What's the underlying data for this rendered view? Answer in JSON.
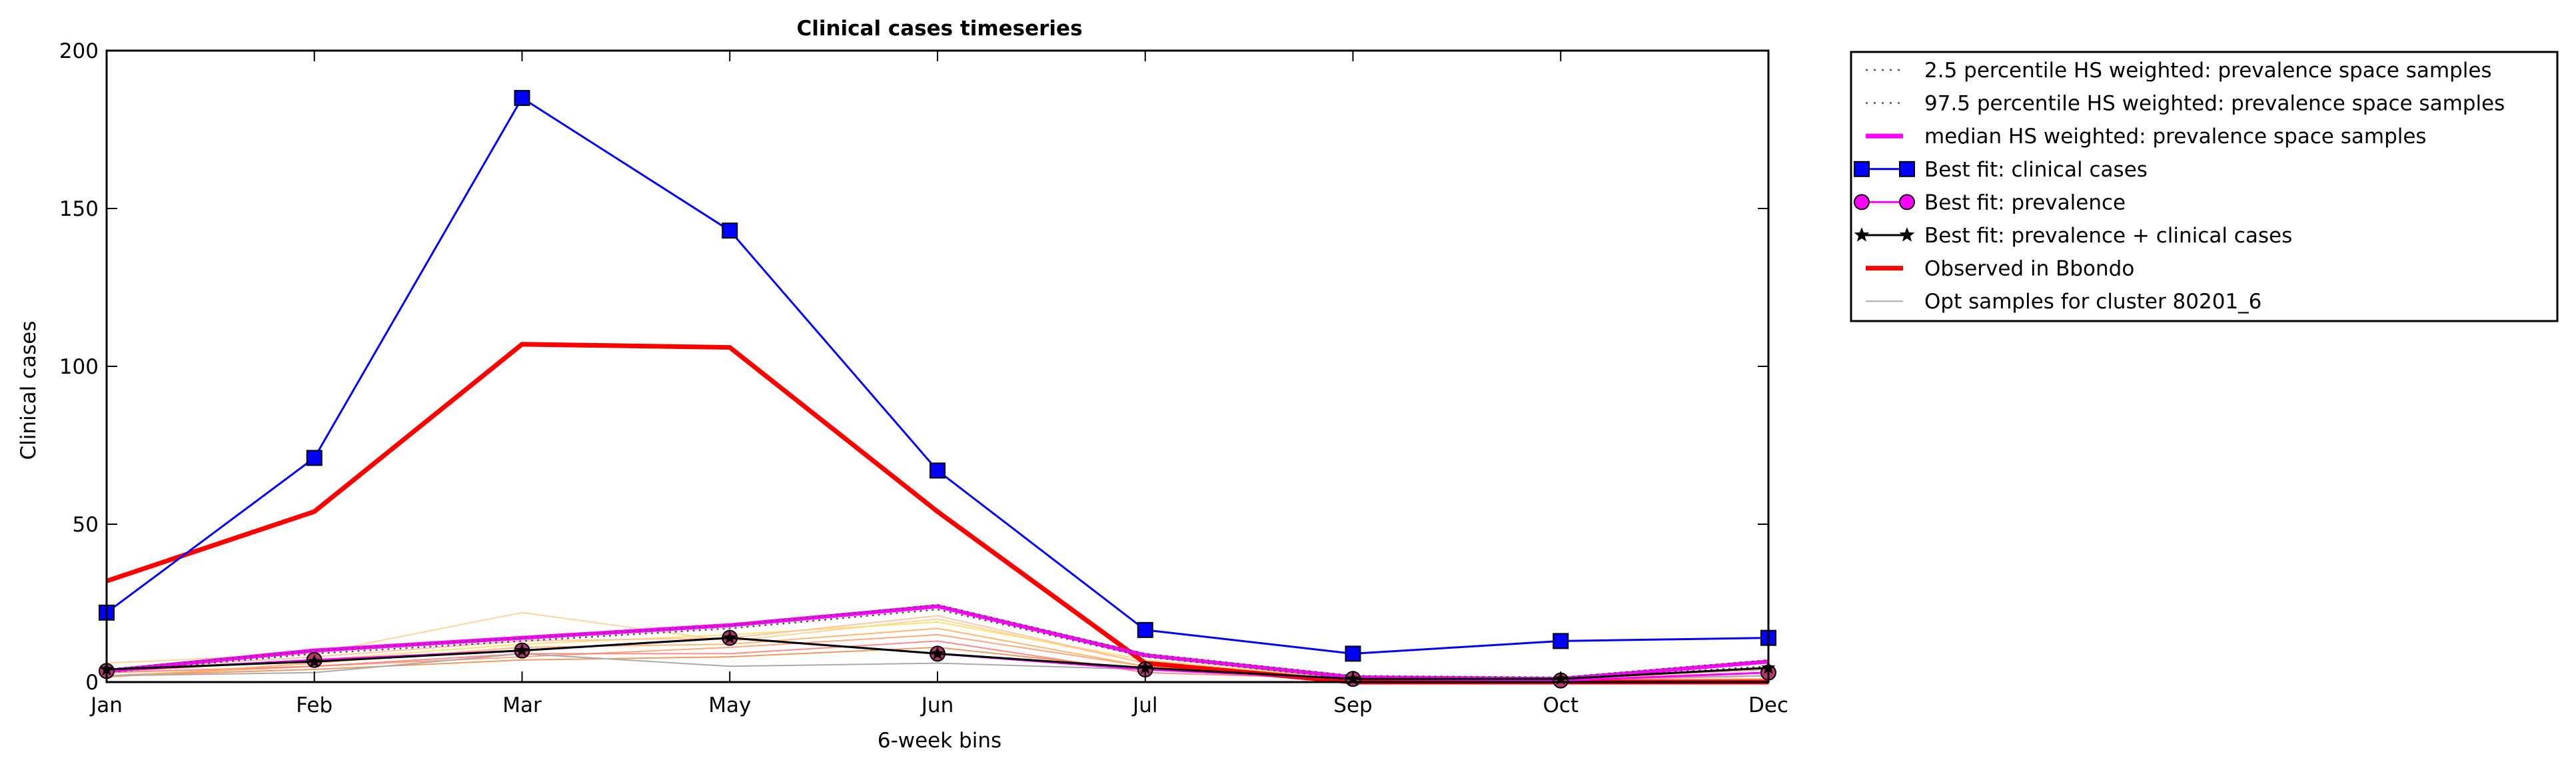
{
  "chart_data": {
    "type": "line",
    "title": "Clinical cases timeseries",
    "xlabel": "6-week bins",
    "ylabel": "Clinical cases",
    "categories": [
      "Jan",
      "Feb",
      "Mar",
      "May",
      "Jun",
      "Jul",
      "Sep",
      "Oct",
      "Dec"
    ],
    "ylim": [
      0,
      200
    ],
    "yticks": [
      0,
      50,
      100,
      150,
      200
    ],
    "grid": false,
    "legend_position": "outside-top-right",
    "series": [
      {
        "name": "2.5 percentile HS weighted: prevalence space samples",
        "style": "dotted",
        "color": "#555555",
        "values": [
          3,
          9,
          13,
          17,
          23,
          8,
          1,
          1,
          5
        ]
      },
      {
        "name": "97.5 percentile HS weighted: prevalence space samples",
        "style": "dotted",
        "color": "#555555",
        "values": [
          4,
          10,
          14,
          18,
          24.5,
          9,
          2,
          1.5,
          7
        ]
      },
      {
        "name": "median HS weighted: prevalence space samples",
        "style": "solid-thick",
        "color": "#ff00ff",
        "values": [
          3.5,
          10,
          14,
          18,
          24,
          8.5,
          1.5,
          1,
          6.5
        ]
      },
      {
        "name": "Best fit: clinical cases",
        "style": "square-markers",
        "color": "#0000ff",
        "values": [
          22,
          71,
          185,
          143,
          67,
          16.5,
          9,
          13,
          14
        ]
      },
      {
        "name": "Best fit: prevalence",
        "style": "circle-markers",
        "color": "#ff00ff",
        "values": [
          3.5,
          7,
          10,
          14,
          9,
          4,
          1,
          0.5,
          3
        ]
      },
      {
        "name": "Best fit: prevalence + clinical cases",
        "style": "star-markers",
        "color": "#000000",
        "values": [
          4,
          6.5,
          10,
          14,
          9,
          4.5,
          1,
          1,
          4.5
        ]
      },
      {
        "name": "Observed in Bbondo",
        "style": "solid-thick",
        "color": "#ff0000",
        "values": [
          32,
          54,
          107,
          106,
          54,
          6,
          0,
          0,
          0
        ]
      },
      {
        "name": "Opt samples for cluster 80201_6",
        "style": "thin",
        "color": "#aaaaaa",
        "values": [
          2,
          3,
          9,
          5,
          6,
          4,
          1,
          1,
          2
        ]
      }
    ],
    "background_samples": [
      {
        "color": "#ffcc88",
        "values": [
          6,
          9,
          22,
          13,
          20,
          6,
          1,
          1,
          3
        ]
      },
      {
        "color": "#ffdd55",
        "values": [
          3,
          7,
          12,
          15,
          19,
          7,
          1,
          1,
          2
        ]
      },
      {
        "color": "#ff9966",
        "values": [
          2,
          5,
          8,
          11,
          15,
          5,
          1,
          1,
          4
        ]
      },
      {
        "color": "#ff7777",
        "values": [
          3,
          5,
          9,
          9,
          13,
          3,
          1,
          0.5,
          2
        ]
      },
      {
        "color": "#ee8844",
        "values": [
          2,
          4,
          7,
          8,
          11,
          4,
          0.5,
          0.5,
          1
        ]
      },
      {
        "color": "#ffaa55",
        "values": [
          1.5,
          6,
          11,
          12,
          17,
          5,
          1,
          1,
          6
        ]
      },
      {
        "color": "#ffbb99",
        "values": [
          4,
          8,
          13,
          14,
          21,
          6,
          1,
          1,
          3
        ]
      }
    ]
  }
}
